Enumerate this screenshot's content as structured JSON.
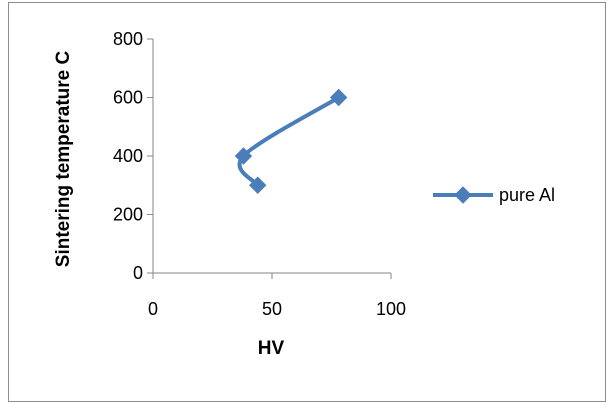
{
  "chart_data": {
    "type": "scatter",
    "title": "",
    "xlabel": "HV",
    "ylabel": "Sintering temperature C",
    "xlim": [
      0,
      100
    ],
    "ylim": [
      0,
      800
    ],
    "x_ticks": [
      "0",
      "50",
      "100"
    ],
    "y_ticks": [
      "0",
      "200",
      "400",
      "600",
      "800"
    ],
    "grid": false,
    "legend_position": "right",
    "smooth_lines": true,
    "series": [
      {
        "name": "pure Al",
        "color": "#4a7ebb",
        "marker": "diamond",
        "points": [
          {
            "x": 44,
            "y": 300
          },
          {
            "x": 38,
            "y": 400
          },
          {
            "x": 78,
            "y": 600
          }
        ]
      }
    ]
  }
}
